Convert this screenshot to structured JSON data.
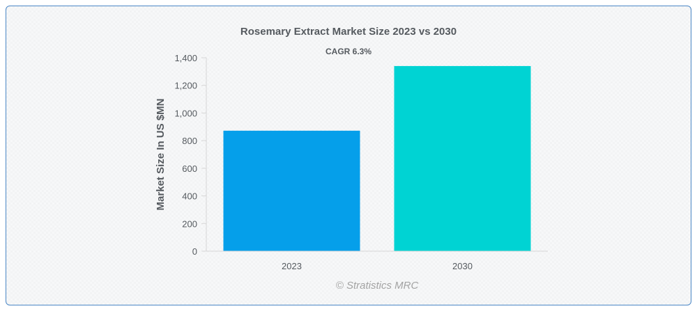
{
  "chart_data": {
    "type": "bar",
    "title": "Rosemary Extract Market Size 2023 vs 2030",
    "subtitle": "CAGR 6.3%",
    "xlabel": "",
    "ylabel": "Market Size In US $MN",
    "categories": [
      "2023",
      "2030"
    ],
    "values": [
      872,
      1340
    ],
    "colors": [
      "#059fea",
      "#00d3d3"
    ],
    "ylim": [
      0,
      1400
    ],
    "yticks": [
      0,
      200,
      400,
      600,
      800,
      1000,
      1200,
      1400
    ],
    "ytick_labels": [
      "0",
      "200",
      "400",
      "600",
      "800",
      "1,000",
      "1,200",
      "1,400"
    ],
    "grid": false,
    "legend": "none"
  },
  "credit": "© Stratistics MRC"
}
